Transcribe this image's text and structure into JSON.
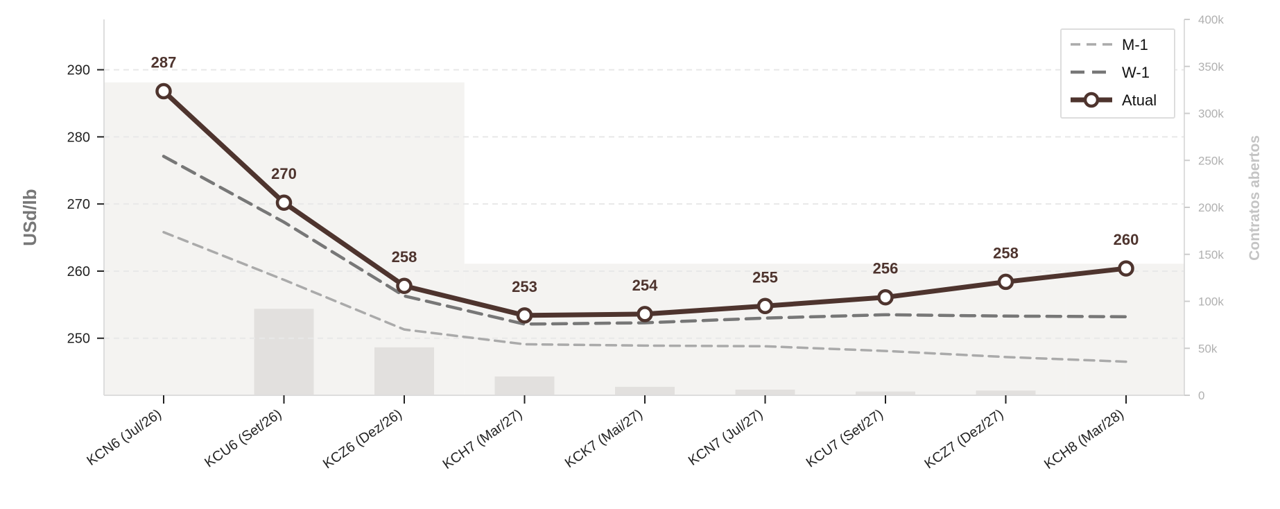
{
  "chart_data": {
    "type": "line",
    "categories": [
      "KCN6 (Jul/26)",
      "KCU6 (Set/26)",
      "KCZ6 (Dez/26)",
      "KCH7 (Mar/27)",
      "KCK7 (Mai/27)",
      "KCN7 (Jul/27)",
      "KCU7 (Set/27)",
      "KCZ7 (Dez/27)",
      "KCH8 (Mar/28)"
    ],
    "series": [
      {
        "name": "M-1",
        "style": "dashed",
        "color": "#aaaaaa",
        "values": [
          265.8,
          258.7,
          251.3,
          249.1,
          248.9,
          248.8,
          248.1,
          247.2,
          246.5
        ]
      },
      {
        "name": "W-1",
        "style": "dashed",
        "color": "#777777",
        "values": [
          277.1,
          267.3,
          256.3,
          252.1,
          252.3,
          253.0,
          253.5,
          253.3,
          253.2
        ]
      },
      {
        "name": "Atual",
        "style": "solid-markers",
        "color": "#4e342e",
        "values": [
          286.8,
          270.2,
          257.8,
          253.4,
          253.6,
          254.8,
          256.1,
          258.4,
          260.4
        ]
      }
    ],
    "data_labels": [
      "287",
      "270",
      "258",
      "253",
      "254",
      "255",
      "256",
      "258",
      "260"
    ],
    "open_interest": {
      "axis": "right",
      "values": [
        333000,
        92000,
        51000,
        20000,
        9000,
        6000,
        4000,
        5000,
        140000
      ],
      "note_shading": "first and last contracts shown as wide background bands"
    },
    "ylabel": "USd/lb",
    "y2label": "Contratos abertos",
    "ylim": [
      241.5,
      297.5
    ],
    "yticks": [
      250,
      260,
      270,
      280,
      290
    ],
    "y2lim": [
      0,
      400000
    ],
    "y2ticks": [
      0,
      50000,
      100000,
      150000,
      200000,
      250000,
      300000,
      350000,
      400000
    ],
    "y2ticklabels": [
      "0",
      "50k",
      "100k",
      "150k",
      "200k",
      "250k",
      "300k",
      "350k",
      "400k"
    ],
    "grid": true,
    "legend_position": "top-right"
  },
  "colors": {
    "atual": "#4e342e",
    "w1": "#777777",
    "m1": "#aaaaaa",
    "bars": "#e2e0de",
    "band": "#f4f3f1",
    "grid": "#e8e8e8"
  }
}
